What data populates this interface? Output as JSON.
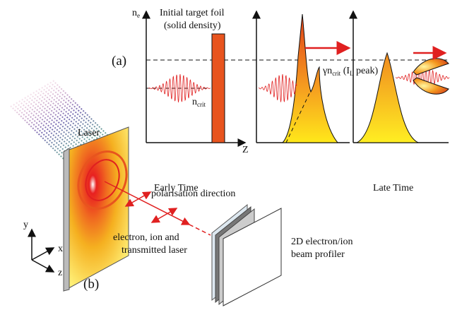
{
  "panel_a": {
    "label": "(a)",
    "y_axis_label": {
      "main": "n",
      "sub": "e"
    },
    "foil_label": [
      "Initial  target foil",
      "(solid density)"
    ],
    "critical_density": {
      "main": "n",
      "sub": "crit"
    },
    "relativistic_density": {
      "prefix": "γn",
      "sub": "crit",
      "middle": " (I",
      "sub2": "L",
      "suffix": " peak)"
    },
    "x_axis_label": "Z",
    "early": "Early Time",
    "late": "Late Time"
  },
  "panel_b": {
    "label": "(b)",
    "laser": "Laser",
    "polarisation": "polarisation direction",
    "transmitted": [
      "electron, ion and",
      "transmitted laser"
    ],
    "profiler": [
      "2D electron/ion",
      "beam profiler"
    ],
    "axes": {
      "y": "y",
      "x": "x",
      "z": "z"
    }
  }
}
